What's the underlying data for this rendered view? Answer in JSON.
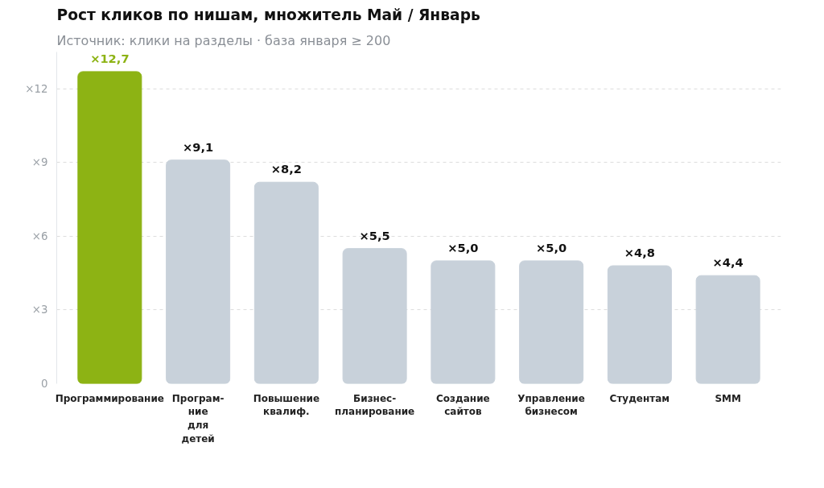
{
  "chart_data": {
    "type": "bar",
    "title": "Рост кликов по нишам, множитель Май / Январь",
    "subtitle": "Источник: клики на разделы · база января ≥ 200",
    "categories": [
      "Программирование",
      "Програм-\nние\nдля\nдетей",
      "Повышение\nквалиф.",
      "Бизнес-\nпланирование",
      "Создание\nсайтов",
      "Управление\nбизнесом",
      "Студентам",
      "SMM"
    ],
    "values": [
      12.7,
      9.1,
      8.2,
      5.5,
      5.0,
      5.0,
      4.8,
      4.4
    ],
    "value_labels": [
      "×12,7",
      "×9,1",
      "×8,2",
      "×5,5",
      "×5,0",
      "×5,0",
      "×4,8",
      "×4,4"
    ],
    "colors": [
      "#8db314",
      "#c8d1da",
      "#c8d1da",
      "#c8d1da",
      "#c8d1da",
      "#c8d1da",
      "#c8d1da",
      "#c8d1da"
    ],
    "ylim": [
      0,
      13.5
    ],
    "yticks": [
      {
        "value": 0,
        "label": "0"
      },
      {
        "value": 3,
        "label": "×3"
      },
      {
        "value": 6,
        "label": "×6"
      },
      {
        "value": 9,
        "label": "×9"
      },
      {
        "value": 12,
        "label": "×12"
      }
    ],
    "grid": "y"
  }
}
